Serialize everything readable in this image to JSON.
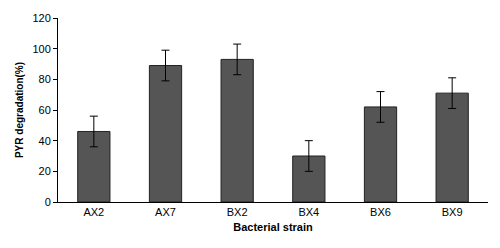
{
  "chart_data": {
    "type": "bar",
    "x_label": "Bacterial strain",
    "y_label": "PYR degradation(%)",
    "categories": [
      "AX2",
      "AX7",
      "BX2",
      "BX4",
      "BX6",
      "BX9"
    ],
    "values": [
      46,
      89,
      93,
      30,
      62,
      71
    ],
    "errors": [
      10,
      10,
      10,
      10,
      10,
      10
    ],
    "color": "#555555",
    "ylim": [
      0,
      120
    ],
    "yticks": [
      0,
      20,
      40,
      60,
      80,
      100,
      120
    ],
    "grid": false
  }
}
